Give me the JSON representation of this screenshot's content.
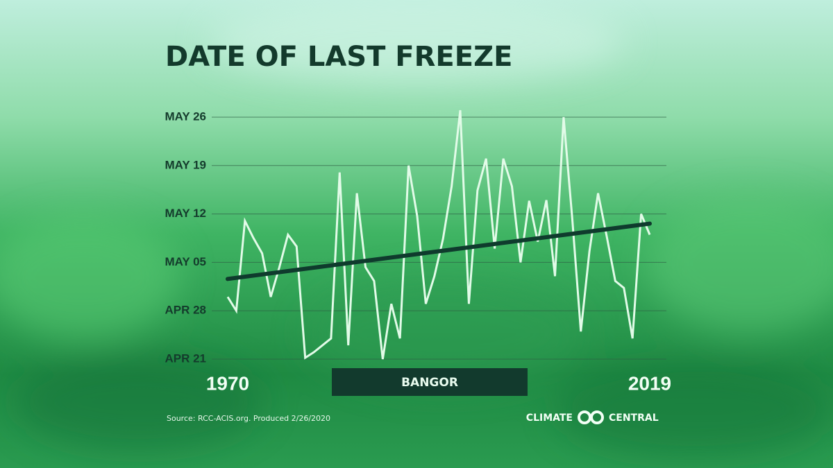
{
  "chart_data": {
    "type": "line",
    "title": "DATE OF LAST FREEZE",
    "location": "BANGOR",
    "source": "Source: RCC-ACIS.org. Produced 2/26/2020",
    "logo": [
      "CLIMATE",
      "CENTRAL"
    ],
    "x": [
      1970,
      1971,
      1972,
      1973,
      1974,
      1975,
      1976,
      1977,
      1978,
      1979,
      1980,
      1981,
      1982,
      1983,
      1984,
      1985,
      1986,
      1987,
      1988,
      1989,
      1990,
      1991,
      1992,
      1993,
      1994,
      1995,
      1996,
      1997,
      1998,
      1999,
      2000,
      2001,
      2002,
      2003,
      2004,
      2005,
      2006,
      2007,
      2008,
      2009,
      2010,
      2011,
      2012,
      2013,
      2014,
      2015,
      2016,
      2017,
      2018,
      2019
    ],
    "values": [
      120,
      118,
      131,
      128.5,
      126.3,
      120,
      124.3,
      129,
      127.3,
      111.2,
      112,
      113,
      114,
      138,
      113,
      135,
      124.3,
      122.3,
      111,
      119,
      114,
      139,
      131.7,
      119,
      123,
      128.4,
      136,
      147,
      119,
      135.4,
      140,
      127,
      140,
      136,
      125,
      133.9,
      128,
      134,
      123,
      146,
      131.4,
      115,
      126.6,
      135,
      128.8,
      122.3,
      121.3,
      114,
      132,
      129
    ],
    "color": "#e2fbe8",
    "trend": {
      "x": [
        1970,
        2019
      ],
      "values": [
        122.6,
        130.6
      ],
      "color": "#0f3b2d"
    },
    "xlim": [
      1970,
      2019
    ],
    "xticks": [
      1970,
      2019
    ],
    "ylim": [
      111,
      147
    ],
    "yticks": [
      {
        "value": 111,
        "label": "APR 21"
      },
      {
        "value": 118,
        "label": "APR 28"
      },
      {
        "value": 125,
        "label": "MAY 05"
      },
      {
        "value": 132,
        "label": "MAY 12"
      },
      {
        "value": 139,
        "label": "MAY 19"
      },
      {
        "value": 146,
        "label": "MAY 26"
      }
    ],
    "grid": true
  }
}
